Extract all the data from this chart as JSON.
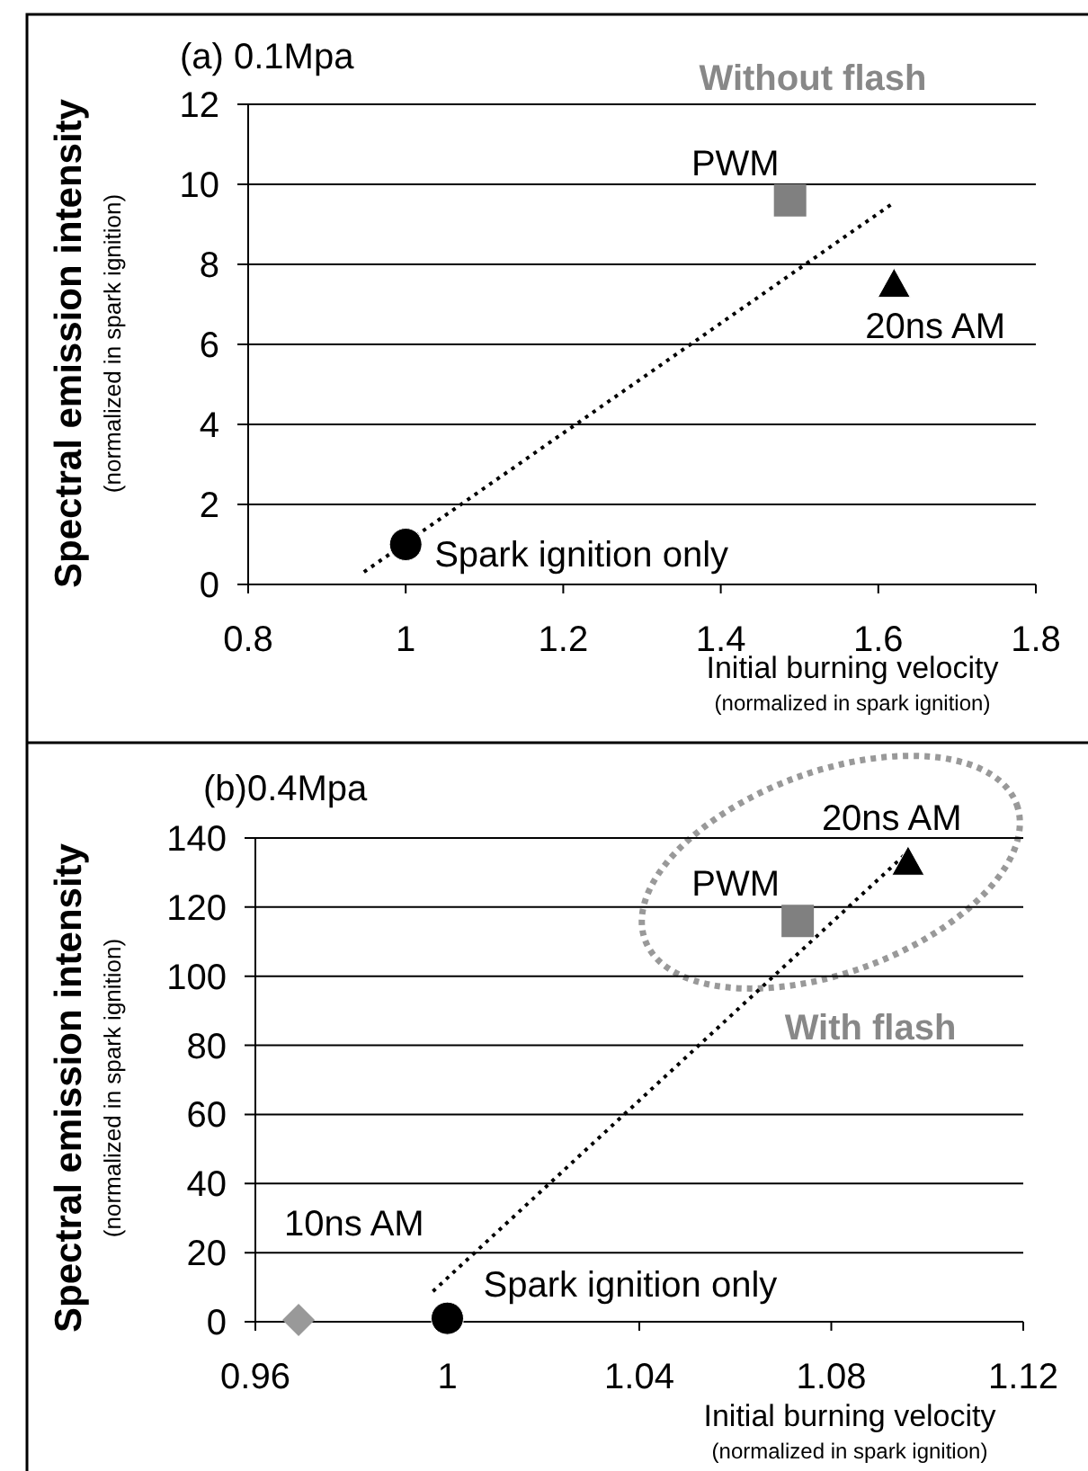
{
  "chart_data": [
    {
      "type": "scatter",
      "title": "(a) 0.1Mpa",
      "xlabel": "Initial burning velocity\n(normalized in spark ignition)",
      "ylabel": "Spectral emission intensity\n(normalized in spark ignition)",
      "xlim": [
        0.8,
        1.8
      ],
      "ylim": [
        0,
        12
      ],
      "xticks": [
        0.8,
        1,
        1.2,
        1.4,
        1.6,
        1.8
      ],
      "yticks": [
        0,
        2,
        4,
        6,
        8,
        10,
        12
      ],
      "grid": "y",
      "series": [
        {
          "type": "line",
          "x": [
            0.947,
            1.618
          ],
          "values": [
            0.31,
            9.52
          ],
          "color": "#000000",
          "line_style": "dotted",
          "marker": "none"
        },
        {
          "x": [
            1
          ],
          "values": [
            1
          ],
          "color": "#000000",
          "marker": "circle"
        },
        {
          "x": [
            1.488
          ],
          "values": [
            9.6
          ],
          "color": "#808080",
          "marker": "square"
        },
        {
          "x": [
            1.62
          ],
          "values": [
            7.5
          ],
          "color": "#000000",
          "marker": "triangle"
        }
      ],
      "annotations": [
        "Without flash",
        {
          "text": "Spark ignition only",
          "x": 1,
          "y": 1
        },
        {
          "text": "PWM",
          "x": 1.488,
          "y": 9.6
        },
        {
          "text": "20ns AM",
          "x": 1.62,
          "y": 7.5
        }
      ]
    },
    {
      "type": "scatter",
      "title": "(b)0.4Mpa",
      "xlabel": "Initial burning velocity\n(normalized in spark ignition)",
      "ylabel": "Spectral emission intensity\n(normalized in spark ignition)",
      "xlim": [
        0.96,
        1.12
      ],
      "ylim": [
        0,
        140
      ],
      "xticks": [
        0.96,
        1,
        1.04,
        1.08,
        1.12
      ],
      "yticks": [
        0,
        20,
        40,
        60,
        80,
        100,
        120,
        140
      ],
      "grid": "y",
      "series": [
        {
          "type": "line",
          "x": [
            0.997,
            1.096
          ],
          "values": [
            8.8,
            136
          ],
          "color": "#000000",
          "line_style": "dotted",
          "marker": "none"
        },
        {
          "x": [
            0.969
          ],
          "values": [
            0.5
          ],
          "color": "#999999",
          "marker": "diamond"
        },
        {
          "x": [
            1
          ],
          "values": [
            1
          ],
          "color": "#000000",
          "marker": "circle"
        },
        {
          "x": [
            1.073
          ],
          "values": [
            116
          ],
          "color": "#808080",
          "marker": "square"
        },
        {
          "x": [
            1.096
          ],
          "values": [
            133
          ],
          "color": "#000000",
          "marker": "triangle"
        }
      ],
      "annotations": [
        "With flash",
        {
          "text": "10ns AM",
          "x": 0.969,
          "y": 0.5
        },
        {
          "text": "Spark ignition only",
          "x": 1,
          "y": 1
        },
        {
          "text": "PWM",
          "x": 1.073,
          "y": 116
        },
        {
          "text": "20ns AM",
          "x": 1.096,
          "y": 133
        }
      ]
    }
  ]
}
